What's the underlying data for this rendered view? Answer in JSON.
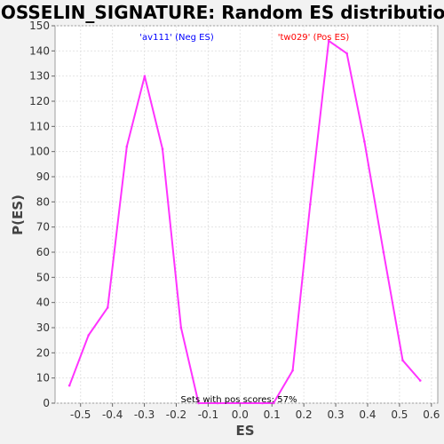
{
  "chart_data": {
    "type": "line",
    "title": "GOSSELIN_SIGNATURE: Random ES distribution",
    "xlabel": "ES",
    "ylabel": "P(ES)",
    "xlim": [
      -0.58,
      0.62
    ],
    "ylim": [
      0,
      150
    ],
    "xticks": [
      "-0.5",
      "-0.4",
      "-0.3",
      "-0.2",
      "-0.1",
      "0.0",
      "0.1",
      "0.2",
      "0.3",
      "0.4",
      "0.5",
      "0.6"
    ],
    "xtick_values": [
      -0.5,
      -0.4,
      -0.3,
      -0.2,
      -0.1,
      0.0,
      0.1,
      0.2,
      0.3,
      0.4,
      0.5,
      0.6
    ],
    "yticks": [
      "0",
      "10",
      "20",
      "30",
      "40",
      "50",
      "60",
      "70",
      "80",
      "90",
      "100",
      "110",
      "120",
      "130",
      "140",
      "150"
    ],
    "ytick_values": [
      0,
      10,
      20,
      30,
      40,
      50,
      60,
      70,
      80,
      90,
      100,
      110,
      120,
      130,
      140,
      150
    ],
    "grid": true,
    "line_color": "#ff33ff",
    "series": [
      {
        "x": [
          -0.535,
          -0.475,
          -0.415,
          -0.355,
          -0.299,
          -0.243,
          -0.185,
          -0.13,
          -0.07,
          0.0,
          0.07,
          0.105,
          0.165,
          0.22,
          0.278,
          0.335,
          0.39,
          0.45,
          0.51,
          0.565
        ],
        "y": [
          7,
          27,
          38,
          102,
          130,
          101,
          30,
          0,
          0,
          0,
          0,
          0,
          13,
          79,
          144,
          139,
          104,
          60,
          17,
          9
        ]
      }
    ],
    "annotations": [
      {
        "text": "'av111' (Neg ES)",
        "color": "#0000ff"
      },
      {
        "text": "'tw029' (Pos ES)",
        "color": "#ff0000"
      },
      {
        "text": "Sets with pos scores: 57%",
        "color": "#000000"
      }
    ]
  }
}
